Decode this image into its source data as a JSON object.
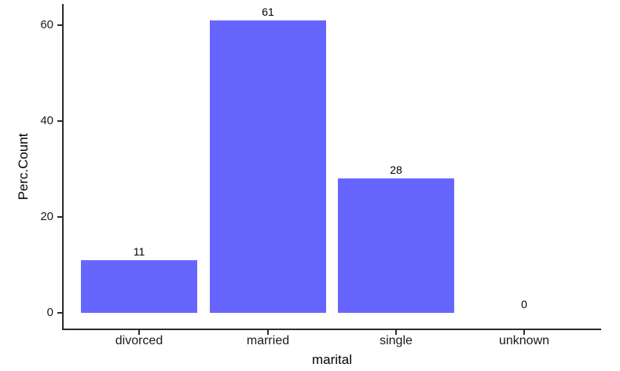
{
  "chart_data": {
    "type": "bar",
    "categories": [
      "divorced",
      "married",
      "single",
      "unknown"
    ],
    "values": [
      11,
      61,
      28,
      0
    ],
    "bar_value_labels": [
      "11",
      "61",
      "28",
      "0"
    ],
    "title": "",
    "xlabel": "marital",
    "ylabel": "Perc.Count",
    "ylim": [
      0,
      61
    ],
    "yticks": [
      0,
      20,
      40,
      60
    ],
    "ytick_labels": [
      "0",
      "20",
      "40",
      "60"
    ],
    "grid": false,
    "legend_position": "none",
    "colors": {
      "bar_fill": "#6666ff",
      "axis_line": "#2b2b2b",
      "tick_label": "#1a1a1a",
      "axis_title": "#000000",
      "background": "#ffffff"
    }
  }
}
